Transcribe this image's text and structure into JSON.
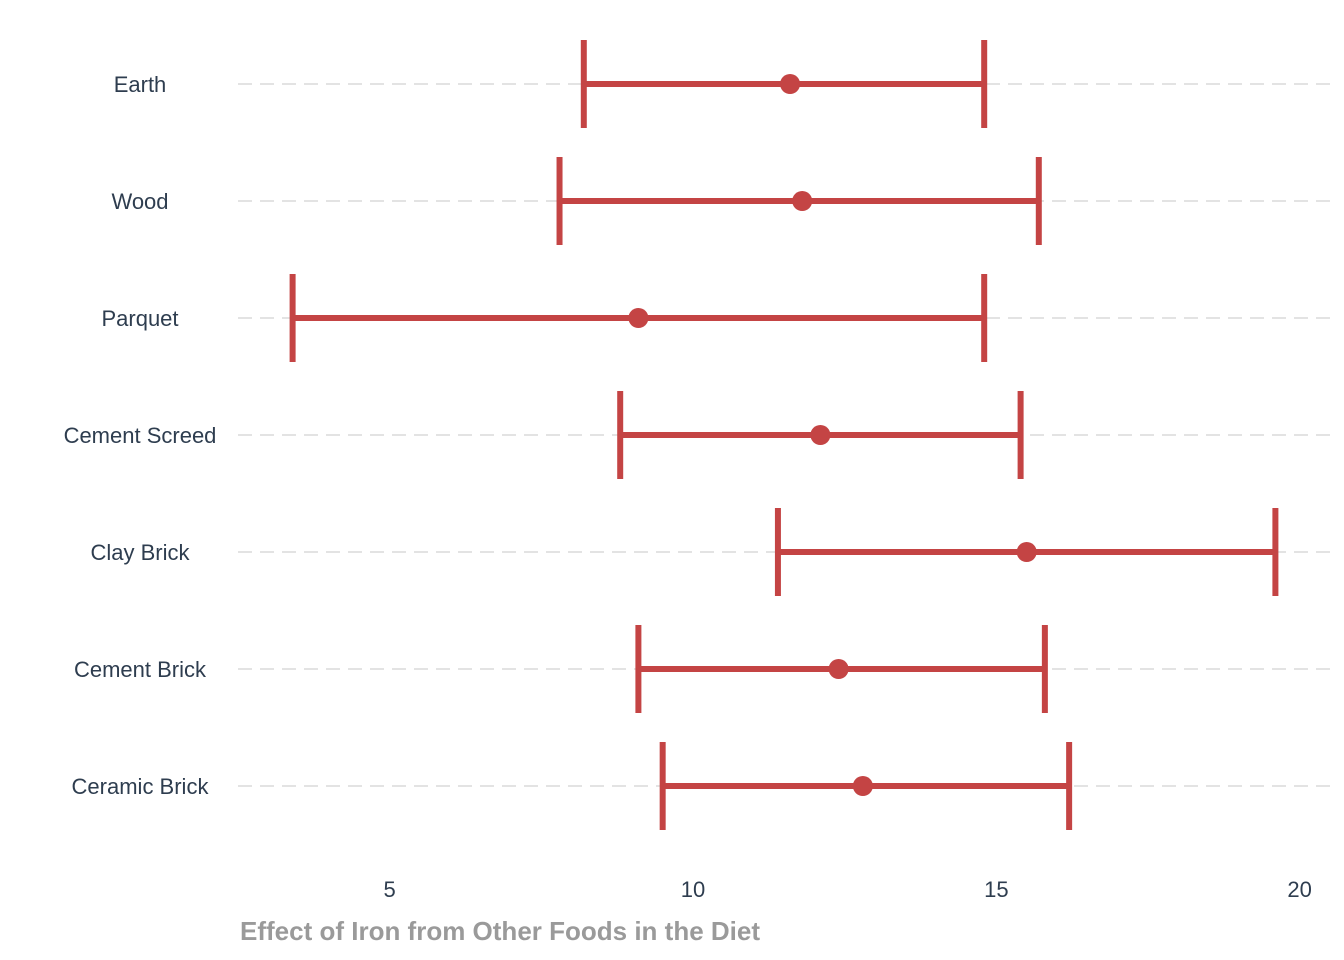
{
  "chart_data": {
    "type": "errorbar",
    "title": "",
    "xlabel": "Effect of Iron from Other Foods in the Diet",
    "ylabel": "",
    "xlim": [
      2.5,
      20.5
    ],
    "xticks": [
      5,
      10,
      15,
      20
    ],
    "grid": "horizontal-dashed",
    "color": "#c44444",
    "categories": [
      "Earth",
      "Wood",
      "Parquet",
      "Cement Screed",
      "Clay Brick",
      "Cement Brick",
      "Ceramic Brick"
    ],
    "estimates": [
      11.6,
      11.8,
      9.1,
      12.1,
      15.5,
      12.4,
      12.8
    ],
    "lower": [
      8.2,
      7.8,
      3.4,
      8.8,
      11.4,
      9.1,
      9.5
    ],
    "upper": [
      14.8,
      15.7,
      14.8,
      15.4,
      19.6,
      15.8,
      16.2
    ]
  }
}
